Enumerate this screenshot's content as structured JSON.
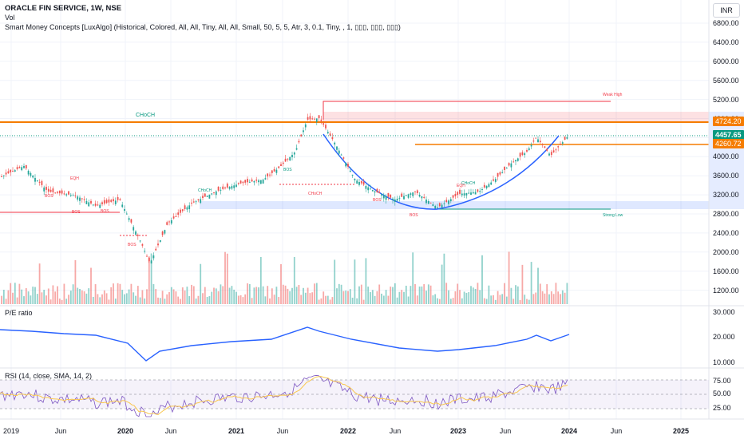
{
  "header": {
    "title": "ORACLE FIN SERVICE, 1W, NSE",
    "volume_label": "Vol",
    "indicator": "Smart Money Concepts [LuxAlgo] (Historical, Colored, All, All, Tiny, All, All, Small, 50, 5, 5, Atr, 3, 0.1, Tiny, , 1, ▯▯▯, ▯▯▯, ▯▯▯)"
  },
  "currency_button": "INR",
  "price_axis": {
    "ticks": [
      "6800.00",
      "6400.00",
      "6000.00",
      "5600.00",
      "5200.00",
      "4800.00",
      "4400.00",
      "4000.00",
      "3600.00",
      "3200.00",
      "2800.00",
      "2400.00",
      "2000.00",
      "1600.00",
      "1200.00"
    ],
    "tags": {
      "upper_level": "4724.20",
      "last_price": "4457.65",
      "lower_level": "4260.72"
    }
  },
  "pe_pane": {
    "label": "P/E ratio",
    "ticks": [
      "30.000",
      "20.000",
      "10.000"
    ]
  },
  "rsi_pane": {
    "label": "RSI (14, close, SMA, 14, 2)",
    "ticks": [
      "75.00",
      "50.00",
      "25.00"
    ]
  },
  "time_axis": {
    "labels": [
      {
        "text": "2019",
        "bold": false
      },
      {
        "text": "Jun",
        "bold": false
      },
      {
        "text": "2020",
        "bold": true
      },
      {
        "text": "Jun",
        "bold": false
      },
      {
        "text": "2021",
        "bold": true
      },
      {
        "text": "Jun",
        "bold": false
      },
      {
        "text": "2022",
        "bold": true
      },
      {
        "text": "Jun",
        "bold": false
      },
      {
        "text": "2023",
        "bold": true
      },
      {
        "text": "Jun",
        "bold": false
      },
      {
        "text": "2024",
        "bold": true
      },
      {
        "text": "Jun",
        "bold": false
      },
      {
        "text": "2025",
        "bold": true
      }
    ]
  },
  "annotations": {
    "choch_big": "CHoCH",
    "weak_high": "Weak High",
    "strong_low": "Strong Low",
    "small_labels": [
      "EQH",
      "BOS",
      "BOS",
      "BOS",
      "BOS",
      "CHoCH",
      "BOS",
      "CHoCH",
      "BOS",
      "BOS",
      "EQH",
      "CHoCH"
    ]
  },
  "colors": {
    "bull": "#26a69a",
    "bear": "#ef5350",
    "orange": "#f57c00",
    "pe_line": "#2962ff",
    "rsi_line": "#7e57c2",
    "rsi_ma": "#f9c74f"
  }
}
